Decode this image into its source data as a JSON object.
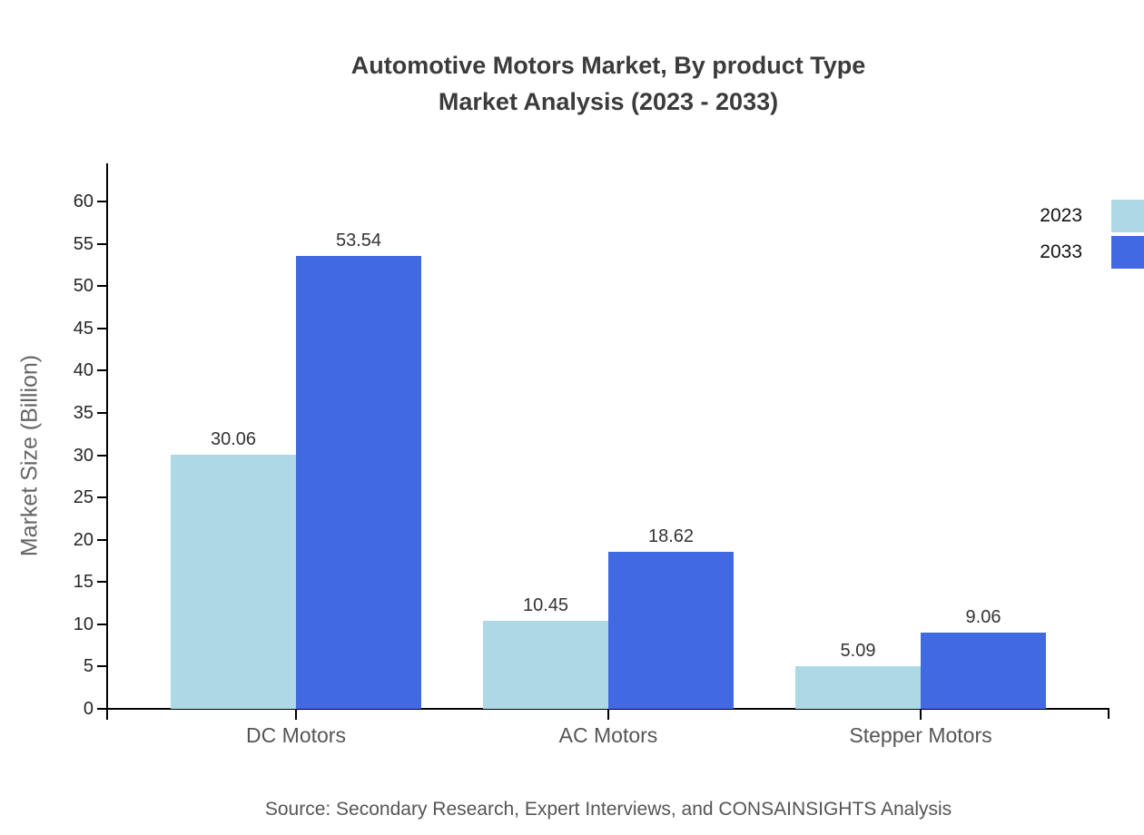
{
  "title": {
    "line1": "Automotive Motors Market, By product Type",
    "line2": "Market Analysis (2023 - 2033)"
  },
  "ylabel": "Market Size (Billion)",
  "source": "Source: Secondary Research, Expert Interviews, and CONSAINSIGHTS Analysis",
  "colors": {
    "series_2023": "#ADD8E6",
    "series_2033": "#4169E1",
    "axis": "#000000",
    "title_text": "#3b3b3b",
    "tick_text": "#262626",
    "category_text": "#555555"
  },
  "chart_data": {
    "type": "bar",
    "title": "Automotive Motors Market, By product Type Market Analysis (2023 - 2033)",
    "categories": [
      "DC Motors",
      "AC Motors",
      "Stepper Motors"
    ],
    "series": [
      {
        "name": "2023",
        "color": "#ADD8E6",
        "values": [
          30.06,
          10.45,
          5.09
        ]
      },
      {
        "name": "2033",
        "color": "#4169E1",
        "values": [
          53.54,
          18.62,
          9.06
        ]
      }
    ],
    "value_labels": [
      [
        "30.06",
        "53.54"
      ],
      [
        "10.45",
        "18.62"
      ],
      [
        "5.09",
        "9.06"
      ]
    ],
    "xlabel": "",
    "ylabel": "Market Size (Billion)",
    "ylim": [
      0,
      60
    ],
    "yticks": [
      0,
      5,
      10,
      15,
      20,
      25,
      30,
      35,
      40,
      45,
      50,
      55,
      60
    ],
    "grid": false,
    "legend_position": "top-right"
  }
}
